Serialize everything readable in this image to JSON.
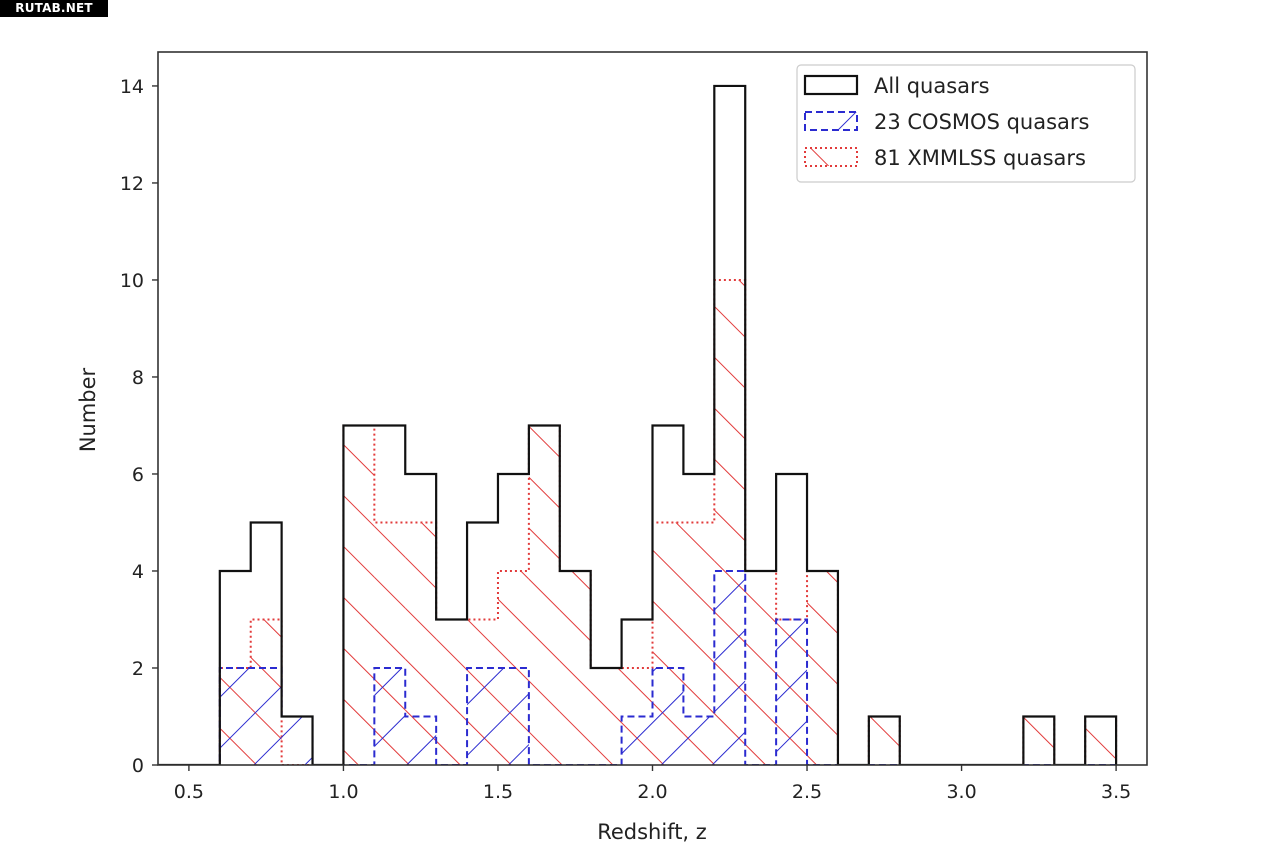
{
  "watermark": "RUTAB.NET",
  "chart_data": {
    "type": "histogram",
    "title": "",
    "xlabel": "Redshift, z",
    "ylabel": "Number",
    "xlim": [
      0.4,
      3.6
    ],
    "ylim": [
      0,
      14.7
    ],
    "xticks": [
      0.5,
      1.0,
      1.5,
      2.0,
      2.5,
      3.0,
      3.5
    ],
    "xtick_labels": [
      "0.5",
      "1.0",
      "1.5",
      "2.0",
      "2.5",
      "3.0",
      "3.5"
    ],
    "yticks": [
      0,
      2,
      4,
      6,
      8,
      10,
      12,
      14
    ],
    "ytick_labels": [
      "0",
      "2",
      "4",
      "6",
      "8",
      "10",
      "12",
      "14"
    ],
    "bin_width": 0.1,
    "bins_start": [
      0.4,
      0.5,
      0.6,
      0.7,
      0.8,
      0.9,
      1.0,
      1.1,
      1.2,
      1.3,
      1.4,
      1.5,
      1.6,
      1.7,
      1.8,
      1.9,
      2.0,
      2.1,
      2.2,
      2.3,
      2.4,
      2.5,
      2.6,
      2.7,
      2.8,
      2.9,
      3.0,
      3.1,
      3.2,
      3.3,
      3.4
    ],
    "legend_position": "upper right",
    "series": [
      {
        "name": "All quasars",
        "style": "solid",
        "color": "#111111",
        "hatch": "none",
        "values": [
          0,
          0,
          4,
          5,
          1,
          0,
          7,
          7,
          6,
          3,
          5,
          6,
          7,
          4,
          2,
          3,
          7,
          6,
          14,
          4,
          6,
          4,
          0,
          1,
          0,
          0,
          0,
          0,
          1,
          0,
          1
        ]
      },
      {
        "name": "23 COSMOS quasars",
        "style": "dashed",
        "color": "#2b2bd0",
        "hatch": "backslash",
        "values": [
          0,
          0,
          2,
          2,
          1,
          0,
          0,
          2,
          1,
          0,
          2,
          2,
          0,
          0,
          0,
          1,
          2,
          1,
          4,
          0,
          3,
          0,
          0,
          0,
          0,
          0,
          0,
          0,
          0,
          0,
          0
        ]
      },
      {
        "name": "81 XMMLSS quasars",
        "style": "dotted",
        "color": "#e23b3b",
        "hatch": "slash",
        "values": [
          0,
          0,
          2,
          3,
          0,
          0,
          7,
          5,
          5,
          3,
          3,
          4,
          7,
          4,
          2,
          2,
          5,
          5,
          10,
          4,
          3,
          4,
          0,
          1,
          0,
          0,
          0,
          0,
          1,
          0,
          1
        ]
      }
    ]
  }
}
